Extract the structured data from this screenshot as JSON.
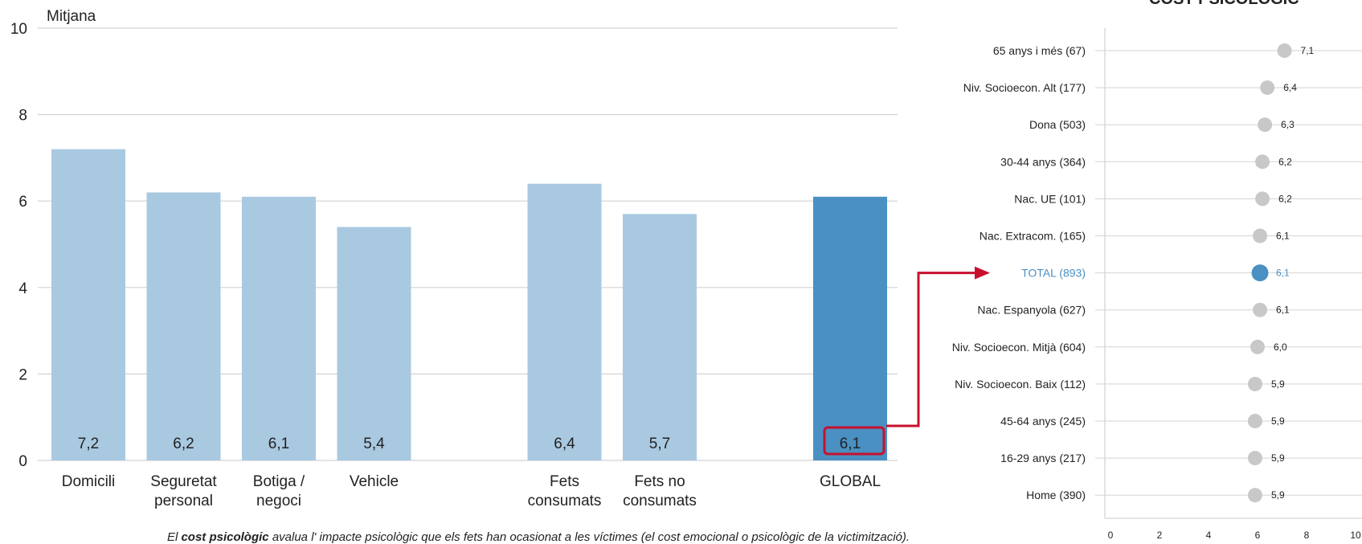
{
  "colors": {
    "bar": "#a9c9e1",
    "bar_highlight": "#4a90c2",
    "dot": "#c8c8c8",
    "dot_highlight": "#4a90c2",
    "label_highlight": "#4a90c2",
    "grid": "#d3d3d3",
    "callout": "#c8102e"
  },
  "partial_header": "COST PSICOLÒGIC",
  "caption": {
    "prefix": "El ",
    "bold": "cost  psicològic",
    "rest": " avalua l' impacte psicològic que els fets han ocasionat a les víctimes (el cost emocional o psicològic de la victimització)."
  },
  "chart_data": [
    {
      "type": "bar",
      "ylabel": "Mitjana",
      "ylim": [
        0,
        10
      ],
      "yticks": [
        "0",
        "2",
        "4",
        "6",
        "8",
        "10"
      ],
      "grid": true,
      "categories": [
        [
          "Domicili"
        ],
        [
          "Seguretat",
          "personal"
        ],
        [
          "Botiga /",
          "negoci"
        ],
        [
          "Vehicle"
        ],
        [
          "Fets",
          "consumats"
        ],
        [
          "Fets no",
          "consumats"
        ],
        [
          "GLOBAL"
        ]
      ],
      "values": [
        7.2,
        6.2,
        6.1,
        5.4,
        6.4,
        5.7,
        6.1
      ],
      "value_labels": [
        "7,2",
        "6,2",
        "6,1",
        "5,4",
        "6,4",
        "5,7",
        "6,1"
      ],
      "highlight": "GLOBAL"
    },
    {
      "type": "scatter",
      "xlim": [
        0,
        10
      ],
      "xticks": [
        "0",
        "2",
        "4",
        "6",
        "8",
        "10"
      ],
      "grid": true,
      "categories": [
        "65 anys i més (67)",
        "Niv. Socioecon. Alt (177)",
        "Dona (503)",
        "30-44 anys (364)",
        "Nac. UE (101)",
        "Nac. Extracom. (165)",
        "TOTAL (893)",
        "Nac. Espanyola (627)",
        "Niv. Socioecon. Mitjà (604)",
        "Niv. Socioecon. Baix (112)",
        "45-64 anys (245)",
        "16-29 anys (217)",
        "Home (390)"
      ],
      "values": [
        7.1,
        6.4,
        6.3,
        6.2,
        6.2,
        6.1,
        6.1,
        6.1,
        6.0,
        5.9,
        5.9,
        5.9,
        5.9
      ],
      "value_labels": [
        "7,1",
        "6,4",
        "6,3",
        "6,2",
        "6,2",
        "6,1",
        "6,1",
        "6,1",
        "6,0",
        "5,9",
        "5,9",
        "5,9",
        "5,9"
      ],
      "highlight": "TOTAL (893)"
    }
  ]
}
